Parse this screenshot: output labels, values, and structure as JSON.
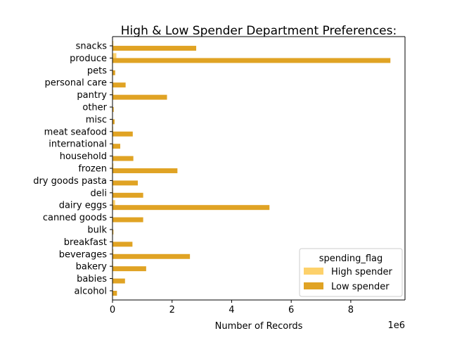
{
  "chart_data": {
    "type": "bar",
    "orientation": "horizontal",
    "title": "High & Low Spender Department Preferences:",
    "xlabel": "Number of Records",
    "ylabel": "",
    "x_scale_label": "1e6",
    "xlim": [
      0,
      9.82
    ],
    "xticks": [
      0,
      2,
      4,
      6,
      8
    ],
    "grid": false,
    "legend": {
      "title": "spending_flag",
      "placement": "lower-right"
    },
    "categories": [
      "alcohol",
      "babies",
      "bakery",
      "beverages",
      "breakfast",
      "bulk",
      "canned goods",
      "dairy eggs",
      "deli",
      "dry goods pasta",
      "frozen",
      "household",
      "international",
      "meat seafood",
      "misc",
      "other",
      "pantry",
      "personal care",
      "pets",
      "produce",
      "snacks"
    ],
    "series": [
      {
        "name": "High spender",
        "color": "#fdd16b",
        "values": [
          0.0,
          0.01,
          0.02,
          0.03,
          0.01,
          0.0,
          0.01,
          0.09,
          0.02,
          0.01,
          0.03,
          0.01,
          0.0,
          0.02,
          0.0,
          0.0,
          0.03,
          0.01,
          0.0,
          0.13,
          0.03
        ]
      },
      {
        "name": "Low spender",
        "color": "#e0a324",
        "values": [
          0.15,
          0.42,
          1.13,
          2.6,
          0.67,
          0.03,
          1.03,
          5.27,
          1.03,
          0.85,
          2.18,
          0.7,
          0.26,
          0.68,
          0.07,
          0.04,
          1.83,
          0.44,
          0.09,
          9.33,
          2.81
        ]
      }
    ]
  }
}
